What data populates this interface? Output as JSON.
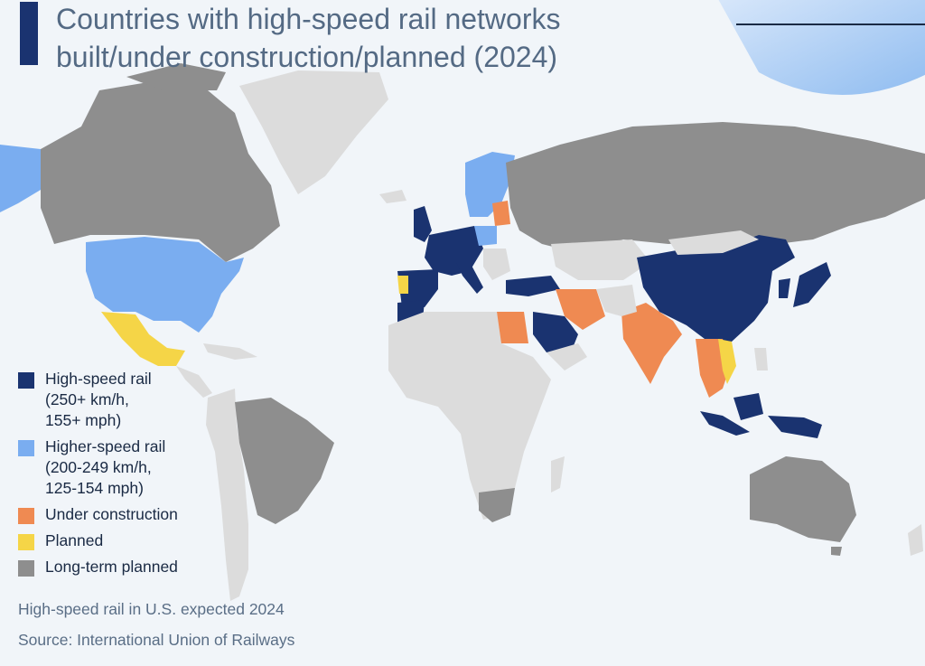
{
  "title_line1": "Countries with high-speed rail networks",
  "title_line2": "built/under construction/planned (2024)",
  "colors": {
    "high_speed": "#1a3370",
    "higher_speed": "#7aadf0",
    "under_construction": "#ef8a52",
    "planned": "#f5d547",
    "long_term": "#8e8e8e",
    "other_land": "#dcdcdc",
    "ocean": "#f1f5f9",
    "title_bar": "#1a3370"
  },
  "legend": [
    {
      "label": "High-speed rail\n(250+ km/h,\n155+ mph)",
      "color": "#1a3370"
    },
    {
      "label": "Higher-speed rail\n(200-249 km/h,\n125-154 mph)",
      "color": "#7aadf0"
    },
    {
      "label": "Under construction",
      "color": "#ef8a52"
    },
    {
      "label": "Planned",
      "color": "#f5d547"
    },
    {
      "label": "Long-term planned",
      "color": "#8e8e8e"
    }
  ],
  "note": "High-speed rail in U.S. expected 2024",
  "source": "Source: International Union of Railways"
}
